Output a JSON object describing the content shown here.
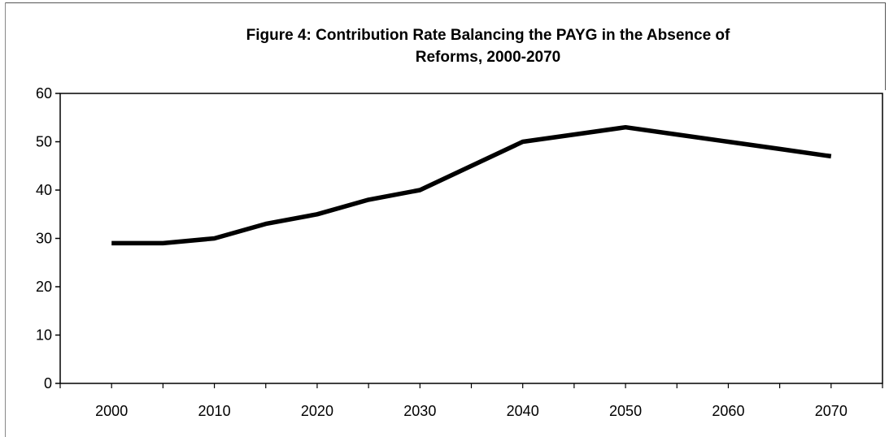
{
  "chart_data": {
    "type": "line",
    "title_line1": "Figure 4: Contribution Rate Balancing the PAYG in the Absence of",
    "title_line2": "Reforms, 2000-2070",
    "xlabel": "",
    "ylabel": "",
    "x": [
      2000,
      2005,
      2010,
      2015,
      2020,
      2025,
      2030,
      2035,
      2040,
      2045,
      2050,
      2055,
      2060,
      2065,
      2070
    ],
    "series": [
      {
        "values": [
          29,
          29,
          30,
          33,
          35,
          38,
          40,
          45,
          50,
          51.5,
          53,
          51.5,
          50,
          48.5,
          47
        ]
      }
    ],
    "x_tick_labels": [
      "2000",
      "2010",
      "2020",
      "2030",
      "2040",
      "2050",
      "2060",
      "2070"
    ],
    "y_tick_labels": [
      "0",
      "10",
      "20",
      "30",
      "40",
      "50",
      "60"
    ],
    "ylim": [
      0,
      60
    ],
    "xlim": [
      1995,
      2075
    ],
    "grid": false,
    "legend": "none",
    "line_color": "#000000"
  }
}
